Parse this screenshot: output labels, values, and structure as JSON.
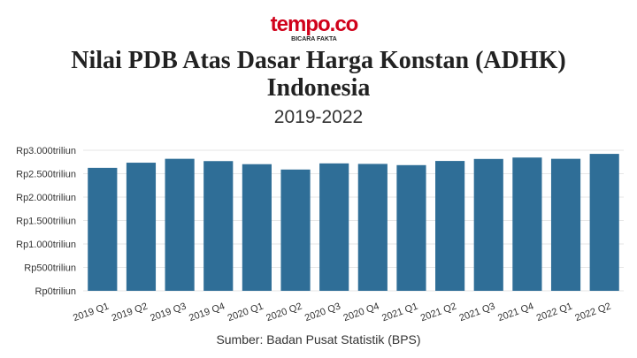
{
  "header": {
    "brand": "tempo.co",
    "tagline": "BICARA FAKTA"
  },
  "chart_data": {
    "type": "bar",
    "title_lines": [
      "Nilai PDB Atas Dasar Harga Konstan (ADHK)",
      "Indonesia"
    ],
    "subtitle": "2019-2022",
    "source": "Sumber: Badan Pusat Statistik (BPS)",
    "categories": [
      "2019 Q1",
      "2019 Q2",
      "2019 Q3",
      "2019 Q4",
      "2020 Q1",
      "2020 Q2",
      "2020 Q3",
      "2020 Q4",
      "2021 Q1",
      "2021 Q2",
      "2021 Q3",
      "2021 Q4",
      "2022 Q1",
      "2022 Q2"
    ],
    "values": [
      2625,
      2735,
      2818,
      2769,
      2703,
      2589,
      2720,
      2709,
      2683,
      2772,
      2815,
      2845,
      2818,
      2923
    ],
    "color": "#2f6e97",
    "ylim": [
      0,
      3000
    ],
    "yticks": [
      {
        "value": 0,
        "label": "Rp0triliun"
      },
      {
        "value": 500,
        "label": "Rp500triliun"
      },
      {
        "value": 1000,
        "label": "Rp1.000triliun"
      },
      {
        "value": 1500,
        "label": "Rp1.500triliun"
      },
      {
        "value": 2000,
        "label": "Rp2.000triliun"
      },
      {
        "value": 2500,
        "label": "Rp2.500triliun"
      },
      {
        "value": 3000,
        "label": "Rp3.000triliun"
      }
    ],
    "grid": true
  }
}
